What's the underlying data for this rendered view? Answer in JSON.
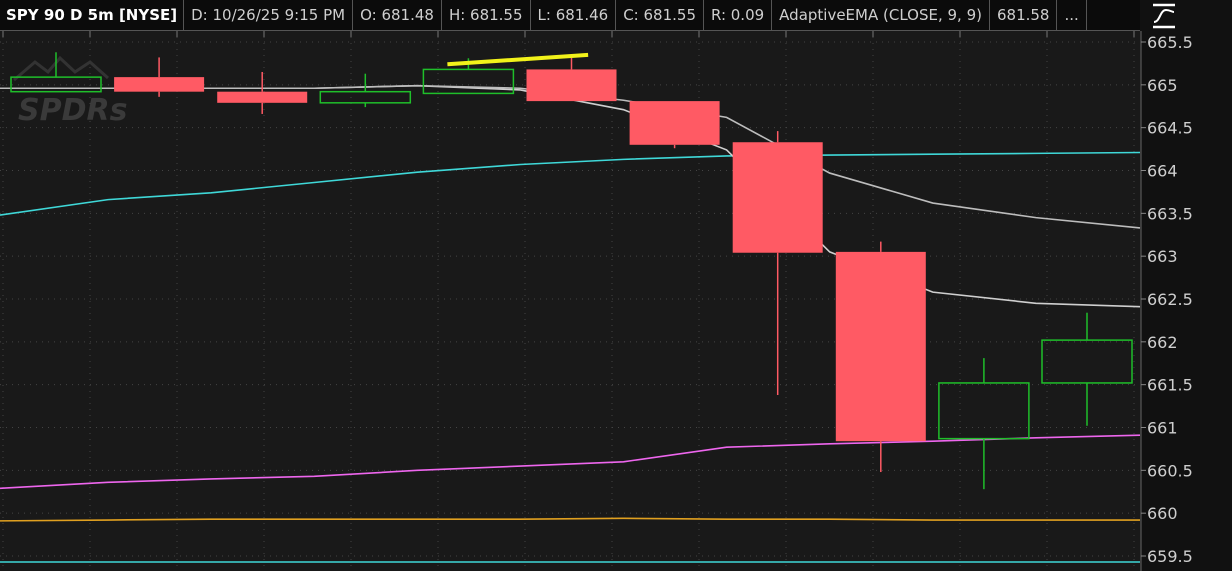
{
  "header": {
    "symbol": "SPY 90 D 5m [NYSE]",
    "date": "D: 10/26/25 9:15 PM",
    "open": "O: 681.48",
    "high": "H: 681.55",
    "low": "L: 681.46",
    "close": "C: 681.55",
    "range": "R: 0.09",
    "study": "AdaptiveEMA (CLOSE, 9, 9)",
    "study_value": "681.58",
    "more": "..."
  },
  "icons": {
    "style_toggle": "curve-settings-icon"
  },
  "chart_data": {
    "type": "candlestick",
    "ylim": [
      659.4,
      665.6
    ],
    "yticks": [
      "665.5",
      "665",
      "664.5",
      "664",
      "663.5",
      "663",
      "662.5",
      "662",
      "661.5",
      "661",
      "660.5",
      "660",
      "659.5"
    ],
    "grid": true,
    "watermark": "SPDRs",
    "colors": {
      "up": "#1fbf2a",
      "down": "#ff5a64",
      "background": "#191919",
      "ema_a": "#cfcfcf",
      "ema_b": "#bdbdbd",
      "cyan": "#3fd8d8",
      "magenta": "#ee66ee",
      "orange": "#e0a020",
      "trendline": "#f2f21a"
    },
    "candles": [
      {
        "o": 664.92,
        "h": 665.38,
        "l": 664.92,
        "c": 665.09
      },
      {
        "o": 665.09,
        "h": 665.32,
        "l": 664.86,
        "c": 664.92
      },
      {
        "o": 664.92,
        "h": 665.15,
        "l": 664.66,
        "c": 664.79
      },
      {
        "o": 664.79,
        "h": 665.13,
        "l": 664.74,
        "c": 664.92
      },
      {
        "o": 664.9,
        "h": 665.31,
        "l": 664.9,
        "c": 665.18
      },
      {
        "o": 665.18,
        "h": 665.32,
        "l": 664.81,
        "c": 664.81
      },
      {
        "o": 664.81,
        "h": 664.81,
        "l": 664.26,
        "c": 664.3
      },
      {
        "o": 664.33,
        "h": 664.46,
        "l": 661.38,
        "c": 663.04
      },
      {
        "o": 663.05,
        "h": 663.17,
        "l": 660.48,
        "c": 660.84
      },
      {
        "o": 660.87,
        "h": 661.81,
        "l": 660.28,
        "c": 661.52
      },
      {
        "o": 661.52,
        "h": 662.34,
        "l": 661.02,
        "c": 662.02
      }
    ],
    "lines": [
      {
        "color": "cyan",
        "values": [
          663.48,
          663.66,
          663.74,
          663.86,
          663.98,
          664.07,
          664.13,
          664.17,
          664.18,
          664.19,
          664.2,
          664.21
        ]
      },
      {
        "color": "ema_a",
        "values": [
          664.96,
          664.96,
          664.96,
          664.96,
          664.99,
          664.94,
          664.71,
          664.24,
          663.05,
          662.58,
          662.45,
          662.41
        ]
      },
      {
        "color": "ema_b",
        "values": [
          664.96,
          664.96,
          664.96,
          664.96,
          664.99,
          664.96,
          664.82,
          664.62,
          663.97,
          663.62,
          663.45,
          663.33
        ]
      },
      {
        "color": "magenta",
        "values": [
          660.29,
          660.36,
          660.4,
          660.43,
          660.5,
          660.55,
          660.6,
          660.77,
          660.81,
          660.84,
          660.88,
          660.91
        ]
      },
      {
        "color": "orange",
        "values": [
          659.91,
          659.92,
          659.93,
          659.93,
          659.93,
          659.93,
          659.94,
          659.93,
          659.93,
          659.92,
          659.92,
          659.92
        ]
      },
      {
        "color": "cyan",
        "values": [
          659.43,
          659.43,
          659.43,
          659.43,
          659.43,
          659.43,
          659.43,
          659.43,
          659.43,
          659.43,
          659.43,
          659.43
        ]
      }
    ],
    "trendline": {
      "from": [
        4,
        665.24
      ],
      "to": [
        5.2,
        665.35
      ]
    }
  }
}
